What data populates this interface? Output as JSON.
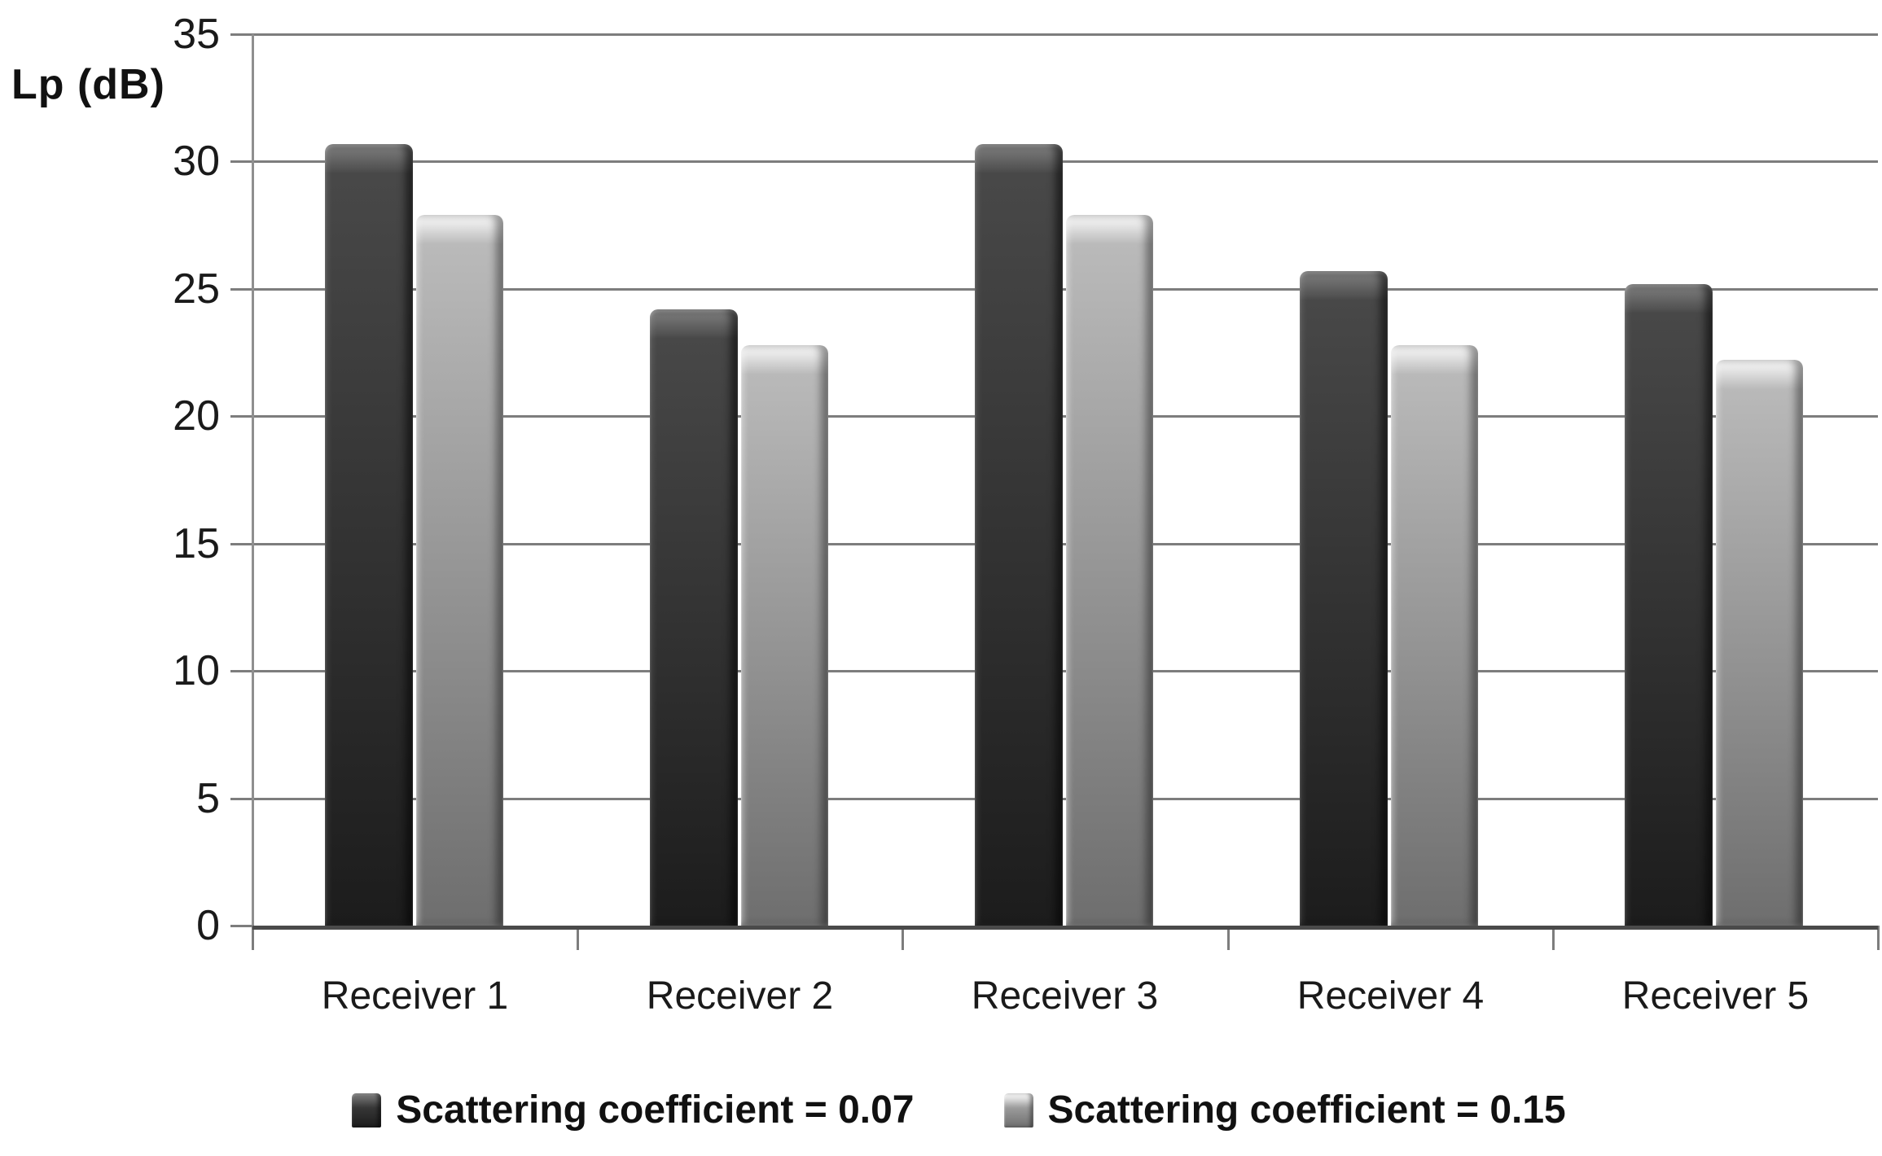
{
  "y_axis_title": "Lp (dB)",
  "colors": {
    "series_007_top": "#4a4a4a",
    "series_007_bottom": "#1c1c1c",
    "series_015_top": "#bdbdbd",
    "series_015_bottom": "#6e6e6e",
    "gridline": "#7d7d7d",
    "axis": "#4a4a4a",
    "text": "#1a1a1a"
  },
  "chart_data": {
    "type": "bar",
    "title": "",
    "ylabel": "Lp (dB)",
    "xlabel": "",
    "categories": [
      "Receiver 1",
      "Receiver 2",
      "Receiver 3",
      "Receiver 4",
      "Receiver 5"
    ],
    "series": [
      {
        "name": "Scattering coefficient = 0.07",
        "values": [
          30.7,
          24.2,
          30.7,
          25.7,
          25.2
        ]
      },
      {
        "name": "Scattering coefficient = 0.15",
        "values": [
          27.9,
          22.8,
          27.9,
          22.8,
          22.2
        ]
      }
    ],
    "ylim": [
      0,
      35
    ],
    "ytick_step": 5,
    "yticks": [
      0,
      5,
      10,
      15,
      20,
      25,
      30,
      35
    ],
    "grid": true,
    "legend_position": "bottom"
  }
}
